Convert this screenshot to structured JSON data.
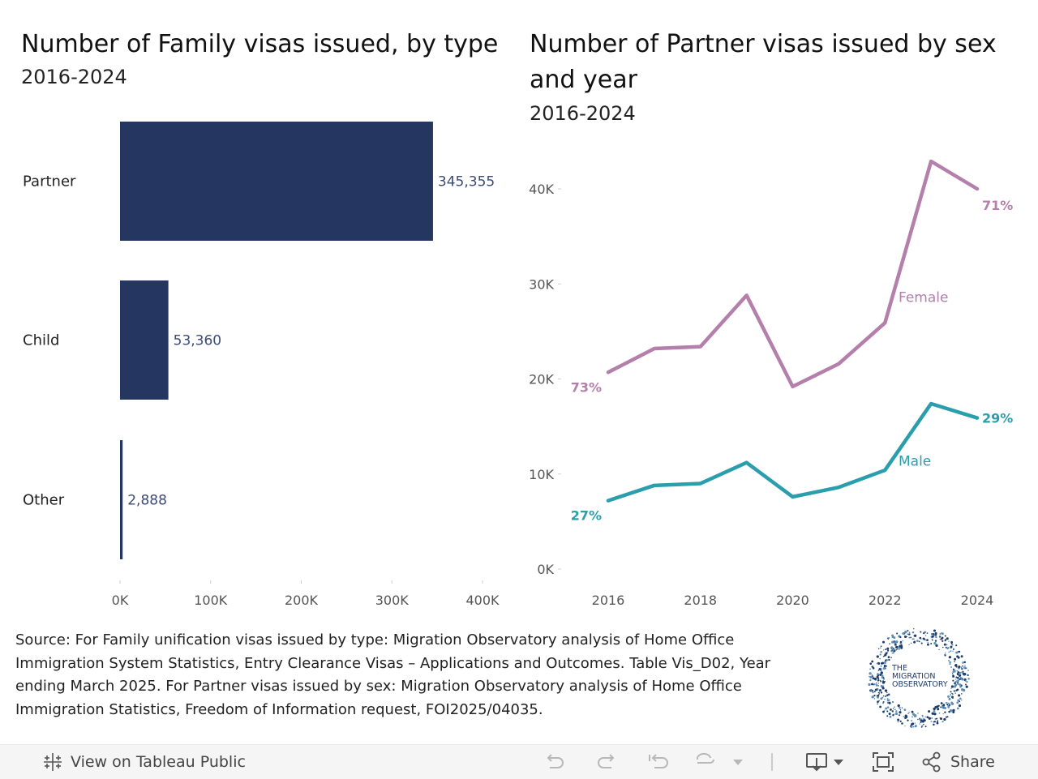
{
  "chart_data": [
    {
      "type": "bar",
      "orientation": "horizontal",
      "title": "Number of Family visas issued, by type",
      "subtitle": "2016-2024",
      "categories": [
        "Partner",
        "Child",
        "Other"
      ],
      "values": [
        345355,
        53360,
        2888
      ],
      "value_labels": [
        "345,355",
        "53,360",
        "2,888"
      ],
      "xlim": [
        0,
        400000
      ],
      "x_ticks": [
        0,
        100000,
        200000,
        300000,
        400000
      ],
      "x_tick_labels": [
        "0K",
        "100K",
        "200K",
        "300K",
        "400K"
      ],
      "bar_color": "#253661",
      "label_color": "#3b4a78"
    },
    {
      "type": "line",
      "title": "Number of Partner visas issued by sex and year",
      "subtitle": "2016-2024",
      "x": [
        2016,
        2017,
        2018,
        2019,
        2020,
        2021,
        2022,
        2023,
        2024
      ],
      "x_tick_labels": [
        "2016",
        "2018",
        "2020",
        "2022",
        "2024"
      ],
      "ylim": [
        0,
        45000
      ],
      "y_ticks": [
        0,
        10000,
        20000,
        30000,
        40000
      ],
      "y_tick_labels": [
        "0K",
        "10K",
        "20K",
        "30K",
        "40K"
      ],
      "series": [
        {
          "name": "Female",
          "color": "#b57fab",
          "values": [
            20700,
            23200,
            23400,
            28800,
            19200,
            21600,
            25900,
            42900,
            40000
          ],
          "start_label": "73%",
          "end_label": "71%"
        },
        {
          "name": "Male",
          "color": "#2a9eac",
          "values": [
            7200,
            8800,
            9000,
            11200,
            7600,
            8600,
            10400,
            17400,
            15900
          ],
          "start_label": "27%",
          "end_label": "29%"
        }
      ]
    }
  ],
  "source_text": "Source: For Family unification visas issued by type: Migration Observatory analysis of Home Office Immigration System Statistics, Entry Clearance Visas – Applications and Outcomes. Table Vis_D02, Year ending March 2025. For Partner visas issued by sex: Migration Observatory analysis of Home Office Immigration Statistics, Freedom of Information request, FOI2025/04035.",
  "logo": {
    "line1": "THE",
    "line2": "MIGRATION",
    "line3": "OBSERVATORY",
    "color": "#1f3d6b"
  },
  "toolbar": {
    "view_label": "View on Tableau Public",
    "share_label": "Share"
  }
}
